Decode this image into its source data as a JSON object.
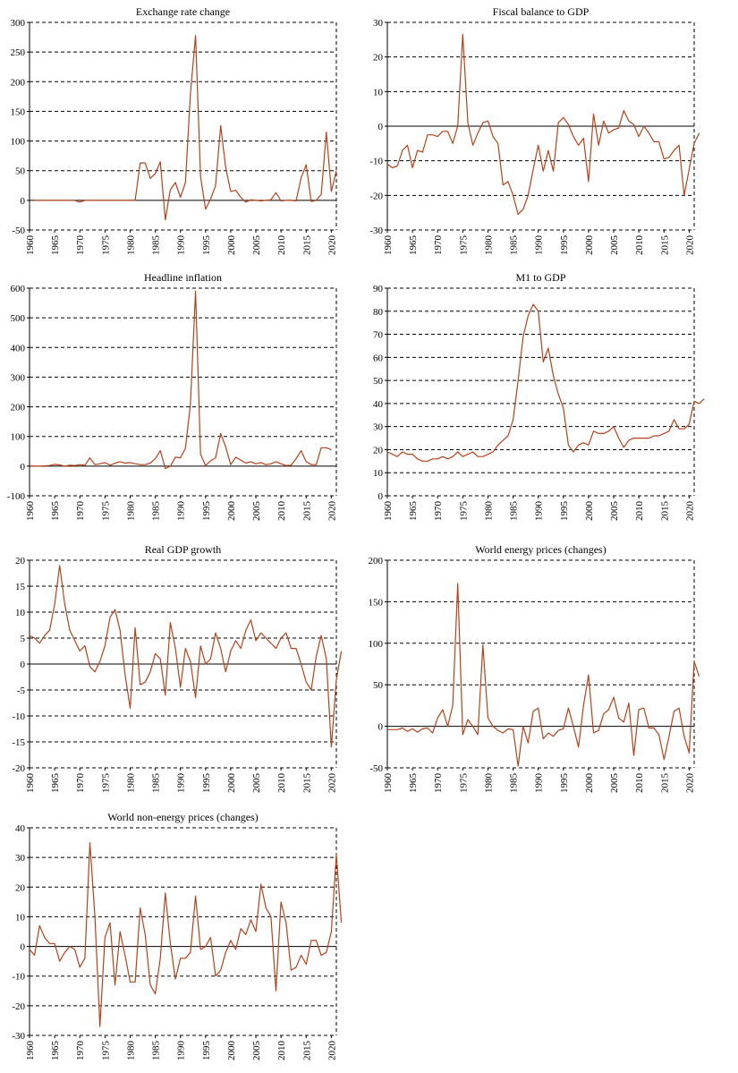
{
  "figure": {
    "line_color": "#B5421A",
    "charts_per_row": 2
  },
  "chart_data": [
    {
      "type": "line",
      "title": "Exchange rate change",
      "xlabel": "",
      "ylabel": "",
      "xlim": [
        1960,
        2021
      ],
      "ylim": [
        -50,
        300
      ],
      "yticks": [
        -50,
        0,
        50,
        100,
        150,
        200,
        250,
        300
      ],
      "xticks": [
        "1960",
        "1965",
        "1970",
        "1975",
        "1980",
        "1985",
        "1990",
        "1995",
        "2000",
        "2005",
        "2010",
        "2015",
        "2020"
      ],
      "grid": "dashed-horizontal",
      "start_year": 1961,
      "values": [
        0,
        0,
        0,
        0,
        0,
        0,
        0,
        0,
        0,
        -3,
        0,
        0,
        0,
        0,
        0,
        0,
        0,
        0,
        0,
        0,
        0,
        63,
        63,
        37,
        45,
        65,
        -33,
        18,
        30,
        5,
        30,
        180,
        278,
        40,
        -15,
        2,
        25,
        126,
        55,
        15,
        17,
        5,
        -3,
        1,
        0,
        -1,
        0,
        1,
        13,
        -1,
        0,
        0,
        -1,
        38,
        60,
        -2,
        0,
        10,
        115,
        15,
        50
      ]
    },
    {
      "type": "line",
      "title": "Fiscal balance to GDP",
      "xlabel": "",
      "ylabel": "",
      "xlim": [
        1960,
        2021
      ],
      "ylim": [
        -30,
        30
      ],
      "yticks": [
        -30,
        -20,
        -10,
        0,
        10,
        20,
        30
      ],
      "xticks": [
        "1960",
        "1965",
        "1970",
        "1975",
        "1980",
        "1985",
        "1990",
        "1995",
        "2000",
        "2005",
        "2010",
        "2015",
        "2020"
      ],
      "grid": "dashed-horizontal",
      "start_year": 1960,
      "values": [
        -11,
        -12,
        -11.5,
        -7,
        -5.5,
        -12,
        -7,
        -7.5,
        -2.5,
        -2.5,
        -3,
        -1.5,
        -1.5,
        -5,
        0,
        26.5,
        1,
        -5.5,
        -2,
        1,
        1.5,
        -3,
        -5,
        -17,
        -16,
        -20,
        -25.5,
        -24,
        -20,
        -12.5,
        -5.5,
        -13,
        -7,
        -13,
        1,
        2.5,
        0.5,
        -3,
        -5.5,
        -3.5,
        -16,
        3.5,
        -5.5,
        1.5,
        -2,
        -1,
        -0.5,
        4.5,
        1.5,
        0.5,
        -3,
        0,
        -2,
        -4.5,
        -4.5,
        -9.5,
        -9,
        -7,
        -5.5,
        -20,
        -12.5,
        -5,
        -2
      ]
    },
    {
      "type": "line",
      "title": "Headline inflation",
      "xlabel": "",
      "ylabel": "",
      "xlim": [
        1960,
        2021
      ],
      "ylim": [
        -100,
        600
      ],
      "yticks": [
        -100,
        0,
        100,
        200,
        300,
        400,
        500,
        600
      ],
      "xticks": [
        "1960",
        "1965",
        "1970",
        "1975",
        "1980",
        "1985",
        "1990",
        "1995",
        "2000",
        "2005",
        "2010",
        "2015",
        "2020"
      ],
      "grid": "dashed-horizontal",
      "start_year": 1960,
      "values": [
        1,
        0,
        0,
        1,
        2,
        6,
        4,
        0,
        3,
        2,
        5,
        3,
        28,
        5,
        8,
        12,
        3,
        10,
        15,
        10,
        12,
        8,
        5,
        5,
        10,
        25,
        52,
        -8,
        0,
        30,
        28,
        60,
        210,
        590,
        40,
        2,
        18,
        28,
        110,
        65,
        5,
        30,
        20,
        10,
        15,
        8,
        12,
        5,
        8,
        15,
        8,
        2,
        3,
        25,
        52,
        15,
        5,
        5,
        62,
        62,
        55
      ]
    },
    {
      "type": "line",
      "title": "M1 to GDP",
      "xlabel": "",
      "ylabel": "",
      "xlim": [
        1960,
        2021
      ],
      "ylim": [
        0,
        90
      ],
      "yticks": [
        0,
        10,
        20,
        30,
        40,
        50,
        60,
        70,
        80,
        90
      ],
      "xticks": [
        "1960",
        "1965",
        "1970",
        "1975",
        "1980",
        "1985",
        "1990",
        "1995",
        "2000",
        "2005",
        "2010",
        "2015",
        "2020"
      ],
      "grid": "dashed-horizontal",
      "start_year": 1960,
      "values": [
        19,
        18,
        17,
        19,
        18,
        18,
        16,
        15,
        15,
        16,
        16,
        17,
        16,
        17,
        19,
        17,
        18,
        19,
        17,
        17,
        18,
        19,
        22,
        24,
        26,
        33,
        50,
        69,
        78,
        83,
        80,
        58,
        64,
        52,
        44,
        38,
        22,
        19,
        22,
        23,
        22,
        28,
        27,
        27,
        28,
        30,
        25,
        21,
        24,
        25,
        25,
        25,
        25,
        26,
        26,
        27,
        28,
        33,
        29,
        29,
        31,
        41,
        40,
        42
      ]
    },
    {
      "type": "line",
      "title": "Real GDP growth",
      "xlabel": "",
      "ylabel": "",
      "xlim": [
        1960,
        2021
      ],
      "ylim": [
        -20,
        20
      ],
      "yticks": [
        -20,
        -15,
        -10,
        -5,
        0,
        5,
        10,
        15,
        20
      ],
      "xticks": [
        "1960",
        "1965",
        "1970",
        "1975",
        "1980",
        "1985",
        "1990",
        "1995",
        "2000",
        "2005",
        "2010",
        "2015",
        "2020"
      ],
      "grid": "dashed-horizontal",
      "start_year": 1960,
      "values": [
        5.5,
        5,
        4,
        5.5,
        6.5,
        11.5,
        19,
        11.5,
        6.5,
        4.5,
        2.5,
        3.5,
        -0.5,
        -1.5,
        0.5,
        3.5,
        9,
        10.5,
        6.5,
        -2,
        -8.5,
        7,
        -4,
        -3.5,
        -1.5,
        2,
        1,
        -6,
        8,
        3,
        -4.5,
        3,
        0.5,
        -6.5,
        3.5,
        0,
        1,
        6,
        3,
        -1.5,
        2.5,
        4.5,
        3,
        6.5,
        8.5,
        4.5,
        6,
        5,
        4,
        3,
        5,
        6,
        3,
        3,
        0,
        -3.5,
        -5,
        1.5,
        5.5,
        1,
        -16,
        -3,
        2.5
      ]
    },
    {
      "type": "line",
      "title": "World energy prices (changes)",
      "xlabel": "",
      "ylabel": "",
      "xlim": [
        1960,
        2021
      ],
      "ylim": [
        -50,
        200
      ],
      "yticks": [
        -50,
        0,
        50,
        100,
        150,
        200
      ],
      "xticks": [
        "1960",
        "1965",
        "1970",
        "1975",
        "1980",
        "1985",
        "1990",
        "1995",
        "2000",
        "2005",
        "2010",
        "2015",
        "2020"
      ],
      "grid": "dashed-horizontal",
      "start_year": 1960,
      "values": [
        -4,
        -4,
        -4,
        -2,
        -6,
        -3,
        -7,
        -3,
        -2,
        -8,
        10,
        20,
        0,
        25,
        172,
        -10,
        8,
        0,
        -10,
        98,
        10,
        0,
        -5,
        -8,
        -3,
        -4,
        -48,
        0,
        -20,
        18,
        22,
        -15,
        -8,
        -12,
        -5,
        -3,
        22,
        0,
        -25,
        25,
        62,
        -8,
        -5,
        15,
        20,
        35,
        10,
        5,
        28,
        -35,
        20,
        22,
        -2,
        -2,
        -10,
        -40,
        -12,
        18,
        22,
        -12,
        -32,
        78,
        60
      ]
    },
    {
      "type": "line",
      "title": "World non-energy prices (changes)",
      "xlabel": "",
      "ylabel": "",
      "xlim": [
        1960,
        2021
      ],
      "ylim": [
        -30,
        40
      ],
      "yticks": [
        -30,
        -20,
        -10,
        0,
        10,
        20,
        30,
        40
      ],
      "xticks": [
        "1960",
        "1965",
        "1970",
        "1975",
        "1980",
        "1985",
        "1990",
        "1995",
        "2000",
        "2005",
        "2010",
        "2015",
        "2020"
      ],
      "grid": "dashed-horizontal",
      "start_year": 1960,
      "values": [
        -1,
        -3,
        7,
        3,
        1,
        1,
        -5,
        -2,
        0,
        -1,
        -7,
        -4,
        35,
        10,
        -27,
        3,
        8,
        -13,
        5,
        -3,
        -12,
        -12,
        13,
        4,
        -13,
        -16,
        -4,
        18,
        1,
        -11,
        -4,
        -4,
        -2,
        17,
        -1,
        0,
        3,
        -10,
        -8,
        -2,
        2,
        -1,
        6,
        4,
        9,
        5,
        21,
        13,
        10,
        -15,
        15,
        8,
        -8,
        -7,
        -3,
        -6,
        2,
        2,
        -3,
        -2,
        5,
        31,
        8
      ]
    }
  ]
}
